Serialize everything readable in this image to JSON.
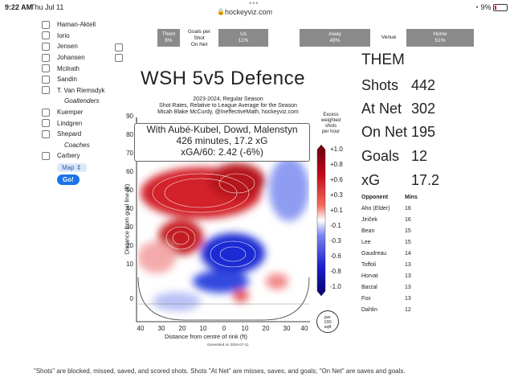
{
  "status": {
    "time": "9:22 AM",
    "date": "Thu Jul 11",
    "url": "hockeyviz.com",
    "battery": "9%"
  },
  "sidebar": {
    "players": [
      "Haman-Aktell",
      "Iorio",
      "Jensen",
      "Johansen",
      "Mcilrath",
      "Sandin",
      "T. Van Riemsdyk"
    ],
    "goaltenders_label": "Goaltenders",
    "goaltenders": [
      "Kuemper",
      "Lindgren",
      "Shepard"
    ],
    "coaches_label": "Coaches",
    "coaches": [
      "Carbery"
    ],
    "map_select": "Map",
    "go_button": "Go!"
  },
  "topbar": {
    "them": "Them",
    "them_pct": "6%",
    "goals_per": "Goals per",
    "shot": "Shot",
    "on_net": "On Net",
    "us": "Us",
    "us_pct": "11%",
    "away": "Away",
    "away_pct": "49%",
    "venue": "Venue",
    "home": "Home",
    "home_pct": "51%"
  },
  "chart": {
    "title": "WSH 5v5 Defence",
    "subtitle1": "2023-2024, Regular Season",
    "subtitle2": "Shot Rates, Relative to League Average for the Season",
    "subtitle3": "Micah Blake McCurdy, @IneffectiveMath, hockeyviz.com",
    "legend_title": [
      "Excess",
      "weighted shots",
      "per hour"
    ],
    "info1": "With Aubé-Kubel, Dowd, Malenstyn",
    "info2": "426 minutes, 17.2 xG",
    "info3": "xGA/60: 2.42 (-6%)",
    "xlabel": "Distance from centre of rink (ft)",
    "ylabel": "Distance from goal line (ft)",
    "yticks": [
      "90",
      "80",
      "70",
      "60",
      "50",
      "40",
      "30",
      "20",
      "10",
      "0"
    ],
    "xticks": [
      "40",
      "30",
      "20",
      "10",
      "0",
      "10",
      "20",
      "30",
      "40"
    ],
    "cbticks": [
      "+1.0",
      "+0.8",
      "+0.6",
      "+0.3",
      "+0.1",
      "-0.1",
      "-0.3",
      "-0.6",
      "-0.8",
      "-1.0"
    ],
    "generated": "Generated on 2024-07-11",
    "per_unit": [
      "per",
      "100",
      "sqft"
    ]
  },
  "stats": {
    "them_label": "THEM",
    "rows": [
      {
        "label": "Shots",
        "value": "442"
      },
      {
        "label": "At Net",
        "value": "302"
      },
      {
        "label": "On Net",
        "value": "195"
      },
      {
        "label": "Goals",
        "value": "12"
      },
      {
        "label": "xG",
        "value": "17.2"
      }
    ]
  },
  "opponents": {
    "header_name": "Opponent",
    "header_mins": "Mins",
    "rows": [
      {
        "name": "Aho (Elder)",
        "mins": "16"
      },
      {
        "name": "Jiriček",
        "mins": "16"
      },
      {
        "name": "Bean",
        "mins": "15"
      },
      {
        "name": "Lee",
        "mins": "15"
      },
      {
        "name": "Gaudreau",
        "mins": "14"
      },
      {
        "name": "Toffoli",
        "mins": "13"
      },
      {
        "name": "Horvat",
        "mins": "13"
      },
      {
        "name": "Barzal",
        "mins": "13"
      },
      {
        "name": "Fox",
        "mins": "13"
      },
      {
        "name": "Dahlin",
        "mins": "12"
      }
    ]
  },
  "footer": "\"Shots\" are blocked, missed, saved, and scored shots. Shots \"At Net\" are misses, saves, and goals; \"On Net\" are saves and goals."
}
